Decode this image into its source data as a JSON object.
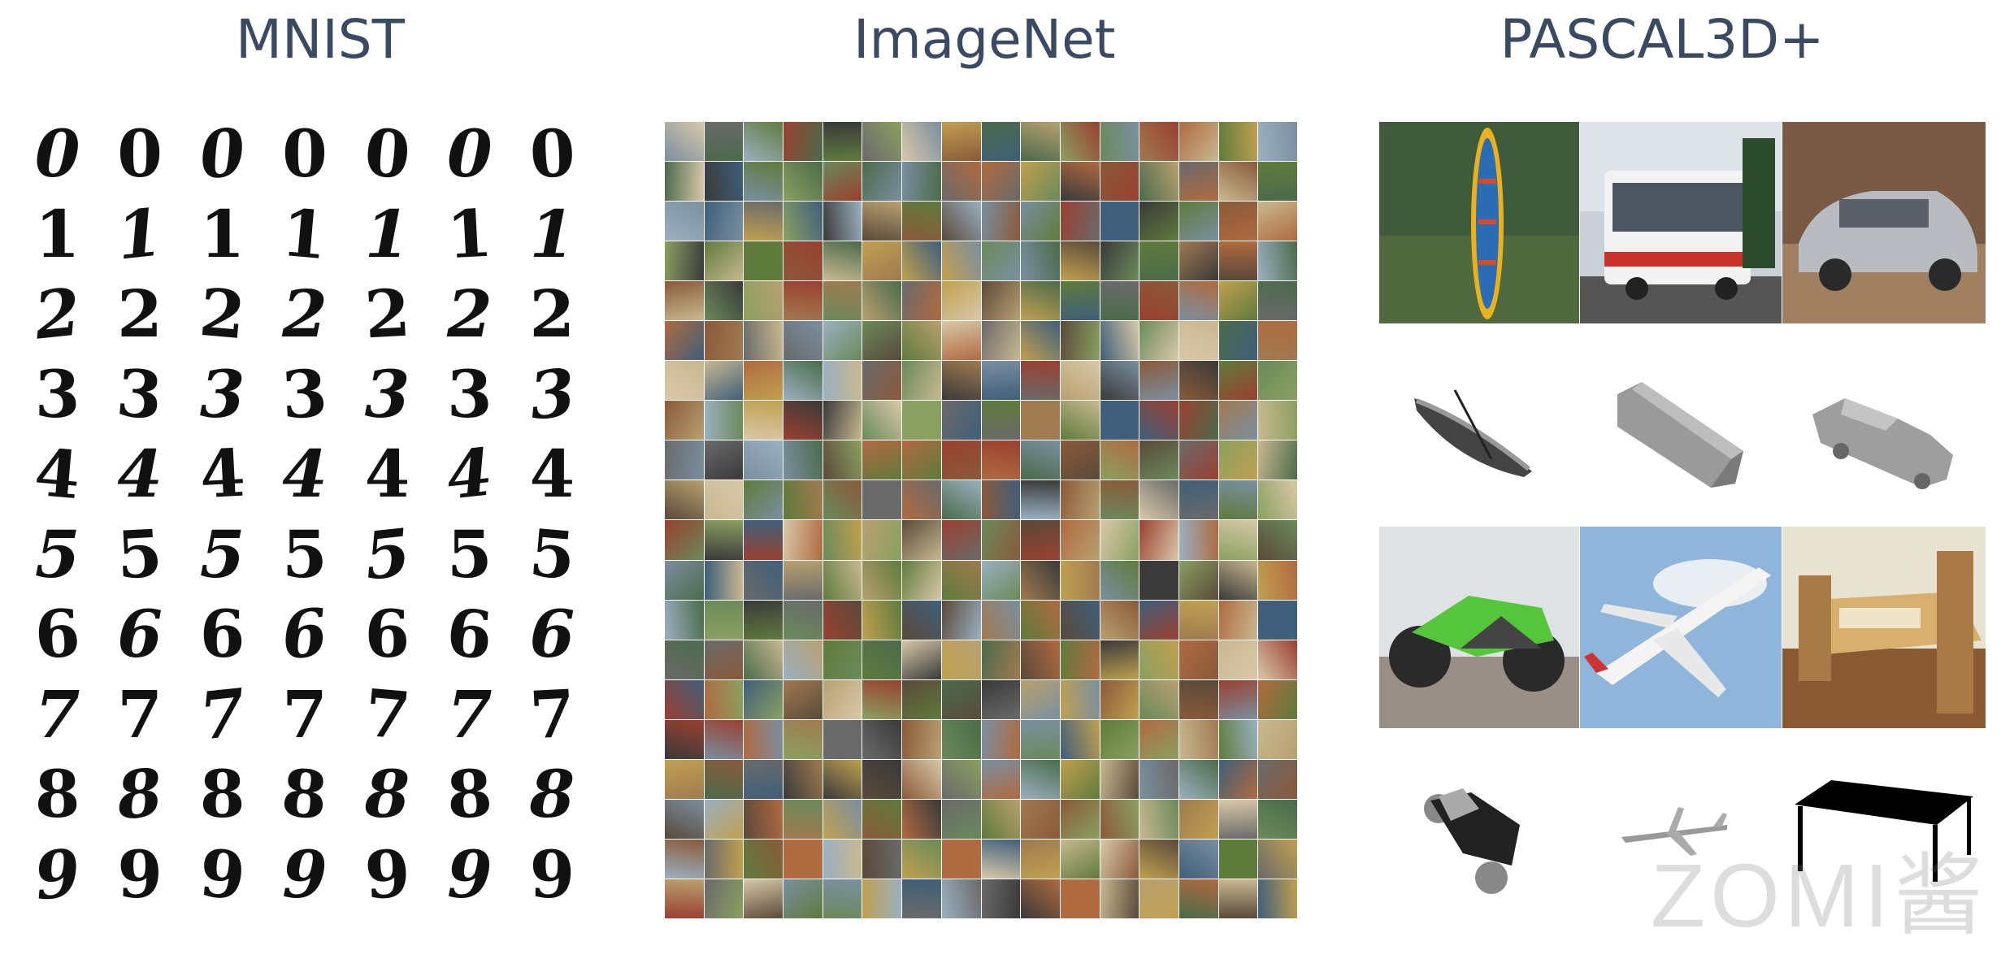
{
  "titles": {
    "mnist": "MNIST",
    "imagenet": "ImageNet",
    "pascal": "PASCAL3D+"
  },
  "mnist_rows": [
    "0",
    "1",
    "2",
    "3",
    "4",
    "5",
    "6",
    "7",
    "8",
    "9"
  ],
  "watermark": "ZOMI酱"
}
